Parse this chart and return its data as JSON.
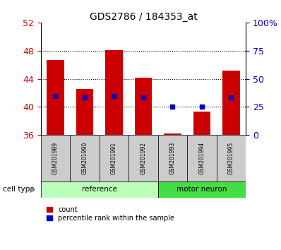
{
  "title": "GDS2786 / 184353_at",
  "samples": [
    "GSM201989",
    "GSM201990",
    "GSM201991",
    "GSM201992",
    "GSM201993",
    "GSM201994",
    "GSM201995"
  ],
  "count_values": [
    46.7,
    42.5,
    48.1,
    44.2,
    36.2,
    39.3,
    45.2
  ],
  "percentile_values": [
    41.5,
    41.3,
    41.5,
    41.3,
    40.0,
    40.0,
    41.3
  ],
  "bar_base": 36,
  "ylim_left": [
    36,
    52
  ],
  "ylim_right": [
    0,
    100
  ],
  "yticks_left": [
    36,
    40,
    44,
    48,
    52
  ],
  "yticks_right": [
    0,
    25,
    50,
    75,
    100
  ],
  "ytick_labels_right": [
    "0",
    "25",
    "50",
    "75",
    "100%"
  ],
  "bar_color": "#cc0000",
  "blue_color": "#0000cc",
  "bg_color": "#ffffff",
  "tick_color_left": "#cc0000",
  "tick_color_right": "#0000cc",
  "group_ref_color": "#bbffbb",
  "group_motor_color": "#44dd44",
  "cell_type_label": "cell type",
  "legend_items": [
    "count",
    "percentile rank within the sample"
  ],
  "bar_width": 0.6,
  "sample_bg": "#cccccc",
  "gridline_ticks": [
    40,
    44,
    48
  ]
}
